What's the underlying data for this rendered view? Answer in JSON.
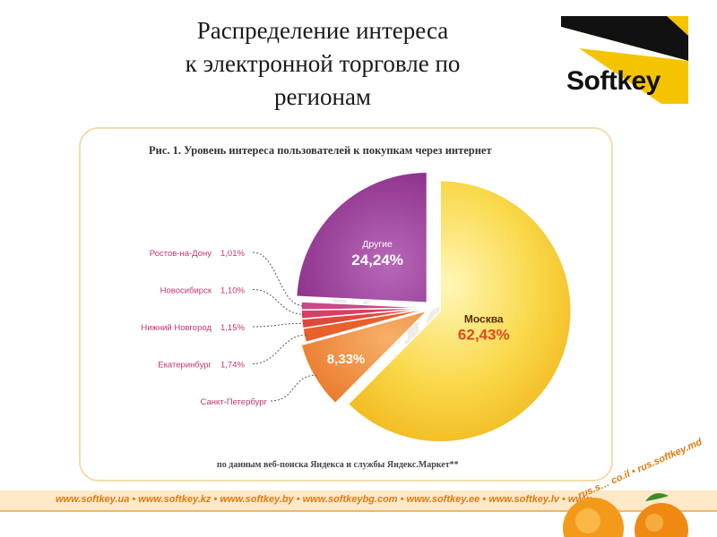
{
  "slide": {
    "title": "Распределение интереса\nк электронной торговле по\nрегионам",
    "logo_text": "Softkey",
    "footer_text": "www.softkey.ua • www.softkey.kz • www.softkey.by • www.softkeybg.com • www.softkey.ee • www.softkey.lv • www.softkey.lt • www.softkey.pl •",
    "footer_text_diag": "rus.s… co.il • rus.softkey.md"
  },
  "colors": {
    "moscow": "#f7c62a",
    "others": "#9a3d97",
    "spb": "#f08a3c",
    "ekb": "#e8602c",
    "nn": "#e0483c",
    "nsk": "#d83f65",
    "rnd": "#c84a86",
    "label_pink": "#c4346e",
    "moscow_pct": "#e04a1e",
    "frame": "#f2dcab",
    "logo_yellow": "#f5c400"
  },
  "chart_data": {
    "type": "pie",
    "title": "Рис. 1. Уровень интереса пользователей к покупкам через интернет",
    "source_note": "по данным веб-поиска Яндекса и службы Яндекс.Маркет**",
    "watermark": "Yndex",
    "slices": [
      {
        "label": "Москва",
        "value": 62.43,
        "value_label": "62,43%",
        "color_key": "moscow"
      },
      {
        "label": "Санкт-Петербург",
        "value": 8.33,
        "value_label": "8,33%",
        "color_key": "spb"
      },
      {
        "label": "Екатеринбург",
        "value": 1.74,
        "value_label": "1,74%",
        "color_key": "ekb"
      },
      {
        "label": "Нижний Новгород",
        "value": 1.15,
        "value_label": "1,15%",
        "color_key": "nn"
      },
      {
        "label": "Новосибирск",
        "value": 1.1,
        "value_label": "1,10%",
        "color_key": "nsk"
      },
      {
        "label": "Ростов-на-Дону",
        "value": 1.01,
        "value_label": "1,01%",
        "color_key": "rnd"
      },
      {
        "label": "Другие",
        "value": 24.24,
        "value_label": "24,24%",
        "color_key": "others"
      }
    ]
  }
}
